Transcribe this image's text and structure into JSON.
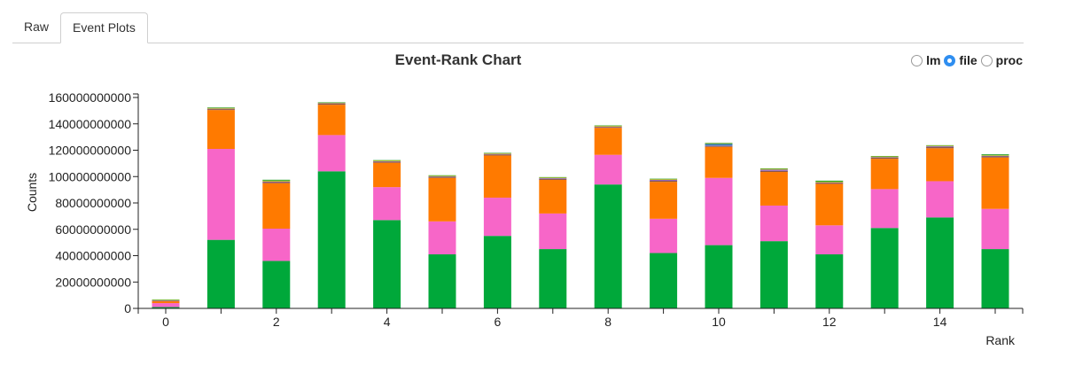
{
  "tabs": [
    {
      "label": "Raw",
      "active": false
    },
    {
      "label": "Event Plots",
      "active": true
    }
  ],
  "radio_options": [
    {
      "label": "lm",
      "checked": false
    },
    {
      "label": "file",
      "checked": true
    },
    {
      "label": "proc",
      "checked": false
    }
  ],
  "chart_data": {
    "type": "bar",
    "stacked": true,
    "title": "Event-Rank Chart",
    "xlabel": "Rank",
    "ylabel": "Counts",
    "ylim": [
      0,
      160000000000
    ],
    "yticks": [
      0,
      20000000000,
      40000000000,
      60000000000,
      80000000000,
      100000000000,
      120000000000,
      140000000000,
      160000000000
    ],
    "ytick_labels": [
      "0",
      "20000000000",
      "40000000000",
      "60000000000",
      "80000000000",
      "100000000000",
      "120000000000",
      "140000000000",
      "160000000000"
    ],
    "xtick_labels": [
      "0",
      "2",
      "4",
      "6",
      "8",
      "10",
      "12",
      "14"
    ],
    "xtick_values": [
      0,
      2,
      4,
      6,
      8,
      10,
      12,
      14
    ],
    "categories": [
      0,
      1,
      2,
      3,
      4,
      5,
      6,
      7,
      8,
      9,
      10,
      11,
      12,
      13,
      14,
      15
    ],
    "series": [
      {
        "color": "#00a83a",
        "values": [
          1000000000,
          52000000000,
          36000000000,
          104000000000,
          67000000000,
          41000000000,
          55000000000,
          45000000000,
          94000000000,
          42000000000,
          48000000000,
          51000000000,
          41000000000,
          61000000000,
          69000000000,
          45000000000
        ]
      },
      {
        "color": "#f766c8",
        "values": [
          3000000000,
          69000000000,
          24500000000,
          27500000000,
          25000000000,
          25000000000,
          29000000000,
          27000000000,
          22500000000,
          26000000000,
          51000000000,
          27000000000,
          22000000000,
          29500000000,
          27500000000,
          30500000000
        ]
      },
      {
        "color": "#ff7a00",
        "values": [
          1500000000,
          29500000000,
          34500000000,
          23000000000,
          18500000000,
          33000000000,
          32000000000,
          25500000000,
          20500000000,
          28000000000,
          23500000000,
          25500000000,
          31500000000,
          23000000000,
          25000000000,
          39000000000
        ]
      },
      {
        "color": "#8c564b",
        "values": [
          400000000,
          700000000,
          800000000,
          800000000,
          700000000,
          800000000,
          800000000,
          800000000,
          600000000,
          800000000,
          700000000,
          800000000,
          700000000,
          800000000,
          1000000000,
          800000000
        ]
      },
      {
        "color": "#9467bd",
        "values": [
          200000000,
          300000000,
          400000000,
          300000000,
          400000000,
          300000000,
          400000000,
          500000000,
          300000000,
          700000000,
          400000000,
          1000000000,
          300000000,
          400000000,
          500000000,
          400000000
        ]
      },
      {
        "color": "#1f77b4",
        "values": [
          0,
          0,
          0,
          0,
          0,
          0,
          0,
          0,
          0,
          0,
          1200000000,
          0,
          0,
          0,
          0,
          0
        ]
      },
      {
        "color": "#bcbd22",
        "values": [
          400000000,
          600000000,
          700000000,
          500000000,
          600000000,
          500000000,
          500000000,
          500000000,
          600000000,
          600000000,
          500000000,
          600000000,
          600000000,
          600000000,
          500000000,
          500000000
        ]
      },
      {
        "color": "#2ca02c",
        "values": [
          300000000,
          400000000,
          700000000,
          300000000,
          300000000,
          400000000,
          300000000,
          300000000,
          300000000,
          300000000,
          300000000,
          300000000,
          800000000,
          300000000,
          300000000,
          700000000
        ]
      }
    ]
  }
}
